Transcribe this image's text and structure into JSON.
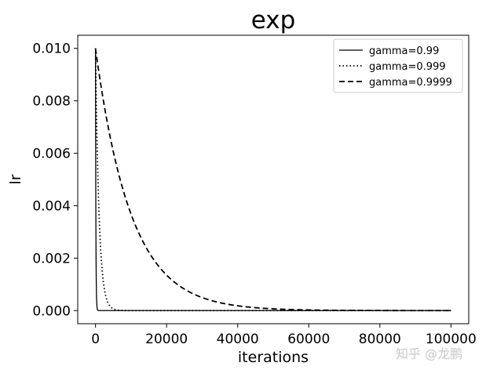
{
  "chart_data": {
    "type": "line",
    "title": "exp",
    "xlabel": "iterations",
    "ylabel": "lr",
    "xlim": [
      -5000,
      105000
    ],
    "ylim": [
      -0.0005,
      0.0105
    ],
    "xticks": [
      0,
      20000,
      40000,
      60000,
      80000,
      100000
    ],
    "xtick_labels": [
      "0",
      "20000",
      "40000",
      "60000",
      "80000",
      "100000"
    ],
    "yticks": [
      0.0,
      0.002,
      0.004,
      0.006,
      0.008,
      0.01
    ],
    "ytick_labels": [
      "0.000",
      "0.002",
      "0.004",
      "0.006",
      "0.008",
      "0.010"
    ],
    "grid": false,
    "legend_position": "top-right",
    "initial_lr": 0.01,
    "x_range": [
      0,
      100000
    ],
    "formula": "lr = 0.01 * gamma^iterations",
    "series": [
      {
        "name": "gamma=0.99",
        "gamma": 0.99,
        "line_style": "solid",
        "color": "#000000"
      },
      {
        "name": "gamma=0.999",
        "gamma": 0.999,
        "line_style": "dotted",
        "color": "#000000"
      },
      {
        "name": "gamma=0.9999",
        "gamma": 0.9999,
        "line_style": "dashed",
        "color": "#000000"
      }
    ]
  },
  "watermark": "知乎 @龙鹏"
}
